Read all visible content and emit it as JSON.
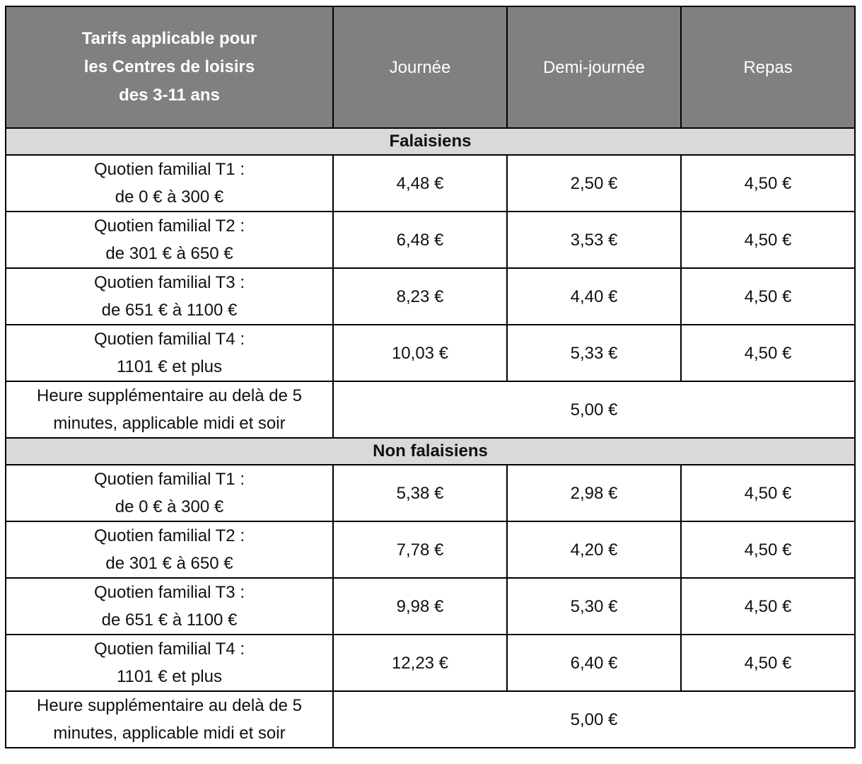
{
  "header": {
    "title_lines": [
      "Tarifs applicable pour",
      "les Centres de loisirs",
      "des 3-11 ans"
    ],
    "col_journee": "Journée",
    "col_demi": "Demi-journée",
    "col_repas": "Repas"
  },
  "groups": [
    {
      "name": "Falaisiens",
      "rows": [
        {
          "label1": "Quotien familial T1 :",
          "label2": "de 0 € à 300 €",
          "journee": "4,48 €",
          "demi": "2,50 €",
          "repas": "4,50 €"
        },
        {
          "label1": "Quotien familial T2 :",
          "label2": "de 301 € à 650 €",
          "journee": "6,48 €",
          "demi": "3,53 €",
          "repas": "4,50 €"
        },
        {
          "label1": "Quotien familial T3 :",
          "label2": "de 651 € à 1100 €",
          "journee": "8,23 €",
          "demi": "4,40 €",
          "repas": "4,50 €"
        },
        {
          "label1": "Quotien familial T4 :",
          "label2": "1101 € et plus",
          "journee": "10,03 €",
          "demi": "5,33 €",
          "repas": "4,50 €"
        }
      ],
      "extra": {
        "label1": "Heure supplémentaire au delà de 5",
        "label2": "minutes, applicable midi et soir",
        "value": "5,00 €"
      }
    },
    {
      "name": "Non falaisiens",
      "rows": [
        {
          "label1": "Quotien familial T1 :",
          "label2": "de 0 € à 300 €",
          "journee": "5,38 €",
          "demi": "2,98 €",
          "repas": "4,50 €"
        },
        {
          "label1": "Quotien familial T2 :",
          "label2": "de 301 € à 650 €",
          "journee": "7,78 €",
          "demi": "4,20 €",
          "repas": "4,50 €"
        },
        {
          "label1": "Quotien familial T3 :",
          "label2": "de 651 € à 1100 €",
          "journee": "9,98 €",
          "demi": "5,30 €",
          "repas": "4,50 €"
        },
        {
          "label1": "Quotien familial T4 :",
          "label2": "1101 € et plus",
          "journee": "12,23 €",
          "demi": "6,40 €",
          "repas": "4,50 €"
        }
      ],
      "extra": {
        "label1": "Heure supplémentaire au delà de 5",
        "label2": "minutes, applicable midi et soir",
        "value": "5,00 €"
      }
    }
  ]
}
